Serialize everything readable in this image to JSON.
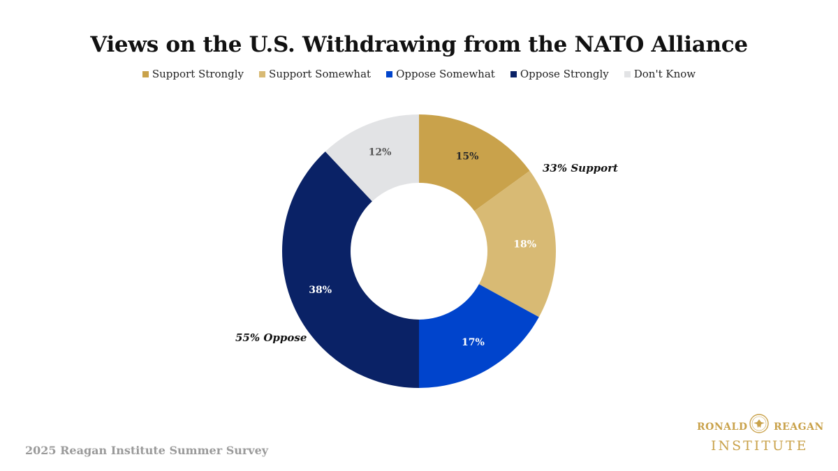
{
  "chart_data": {
    "type": "pie",
    "title": "Views on the U.S. Withdrawing from the NATO Alliance",
    "legend_placement": "top",
    "slices": [
      {
        "name": "Support Strongly",
        "value": 15,
        "label": "15%",
        "color": "#c9a24b",
        "label_color": "#2a2a2a"
      },
      {
        "name": "Support Somewhat",
        "value": 18,
        "label": "18%",
        "color": "#d8ba74",
        "label_color": "#ffffff"
      },
      {
        "name": "Oppose Somewhat",
        "value": 17,
        "label": "17%",
        "color": "#0044cc",
        "label_color": "#ffffff"
      },
      {
        "name": "Oppose Strongly",
        "value": 38,
        "label": "38%",
        "color": "#0a2266",
        "label_color": "#ffffff"
      },
      {
        "name": "Don't Know",
        "value": 12,
        "label": "12%",
        "color": "#e2e3e5",
        "label_color": "#555555"
      }
    ],
    "annotations": [
      {
        "text": "33% Support",
        "group": "support"
      },
      {
        "text": "55% Oppose",
        "group": "oppose"
      }
    ]
  },
  "footer": {
    "source": "2025 Reagan Institute Summer Survey"
  },
  "logo": {
    "line1_left": "RONALD",
    "line1_right": "REAGAN",
    "line2": "INSTITUTE"
  }
}
